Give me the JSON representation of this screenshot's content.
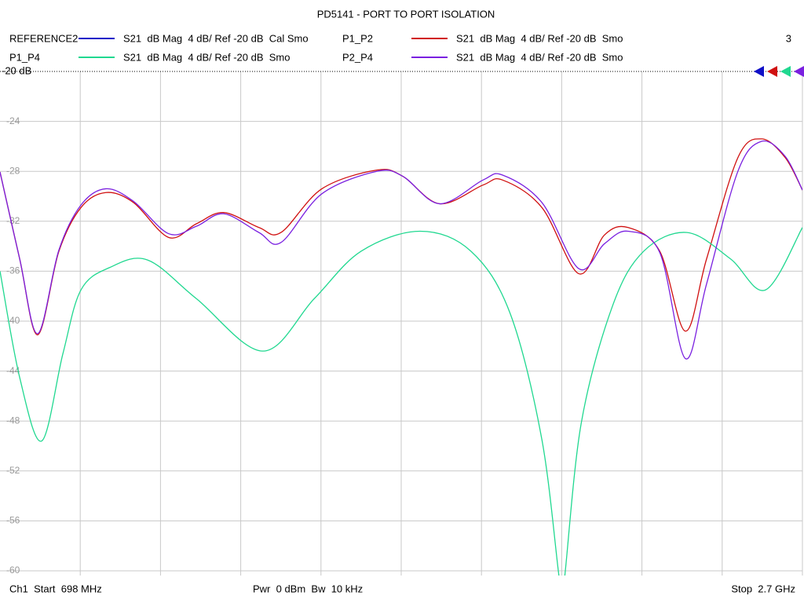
{
  "chart_data": {
    "type": "line",
    "title": "PD5141 - PORT TO PORT ISOLATION",
    "channel_number": "3",
    "reference_label": "-20 dB",
    "footer_left": "Ch1  Start  698 MHz",
    "footer_center": "Pwr  0 dBm  Bw  10 kHz",
    "footer_right": "Stop  2.7 GHz",
    "xlim": [
      698,
      2700
    ],
    "ylim": [
      -60,
      -20
    ],
    "yticks": [
      -24,
      -28,
      -32,
      -36,
      -40,
      -44,
      -48,
      -52,
      -56,
      -60
    ],
    "grid": true,
    "series": [
      {
        "name": "REFERENCE2",
        "description": "S21  dB Mag  4 dB/ Ref -20 dB  Cal Smo",
        "color": "#1010c8"
      },
      {
        "name": "P1_P2",
        "description": "S21  dB Mag  4 dB/ Ref -20 dB  Smo",
        "color": "#d01010",
        "x": [
          698,
          747,
          792,
          845,
          900,
          962,
          1031,
          1119,
          1188,
          1256,
          1344,
          1399,
          1501,
          1638,
          1703,
          1795,
          1903,
          1952,
          2050,
          2142,
          2206,
          2265,
          2344,
          2408,
          2461,
          2539,
          2598,
          2657,
          2700
        ],
        "values": [
          -28.05,
          -35.0,
          -41.1,
          -34.4,
          -30.9,
          -29.7,
          -30.5,
          -33.3,
          -32.2,
          -31.3,
          -32.5,
          -32.9,
          -29.4,
          -27.9,
          -28.4,
          -30.6,
          -29.1,
          -28.7,
          -30.9,
          -36.2,
          -33.1,
          -32.5,
          -34.4,
          -40.8,
          -35.0,
          -26.9,
          -25.4,
          -26.9,
          -29.5
        ]
      },
      {
        "name": "P1_P4",
        "description": "S21  dB Mag  4 dB/ Ref -20 dB  Smo",
        "color": "#20d890",
        "x": [
          698,
          747,
          802,
          855,
          900,
          972,
          1066,
          1188,
          1354,
          1482,
          1599,
          1746,
          1873,
          1971,
          2050,
          2095,
          2105,
          2148,
          2226,
          2304,
          2412,
          2520,
          2608,
          2700
        ],
        "values": [
          -36.0,
          -44.5,
          -49.6,
          -42.6,
          -37.5,
          -35.7,
          -35.1,
          -38.2,
          -42.4,
          -38.2,
          -34.4,
          -32.8,
          -34.4,
          -39.4,
          -49.5,
          -61,
          -61,
          -48.2,
          -38.8,
          -34.4,
          -32.9,
          -35.0,
          -37.5,
          -32.5
        ]
      },
      {
        "name": "P2_P4",
        "description": "S21  dB Mag  4 dB/ Ref -20 dB  Smo",
        "color": "#7a20e0",
        "x": [
          698,
          747,
          792,
          845,
          900,
          962,
          1031,
          1119,
          1188,
          1256,
          1344,
          1399,
          1501,
          1638,
          1703,
          1795,
          1903,
          1952,
          2050,
          2142,
          2206,
          2265,
          2344,
          2408,
          2461,
          2539,
          2598,
          2657,
          2700
        ],
        "values": [
          -28.05,
          -35.0,
          -41.0,
          -34.3,
          -30.7,
          -29.4,
          -30.4,
          -33.0,
          -32.4,
          -31.4,
          -32.9,
          -33.7,
          -29.8,
          -28.0,
          -28.4,
          -30.6,
          -28.7,
          -28.3,
          -30.5,
          -35.8,
          -33.8,
          -32.8,
          -34.5,
          -43.0,
          -37.0,
          -28.0,
          -25.6,
          -26.8,
          -29.5
        ]
      }
    ]
  }
}
